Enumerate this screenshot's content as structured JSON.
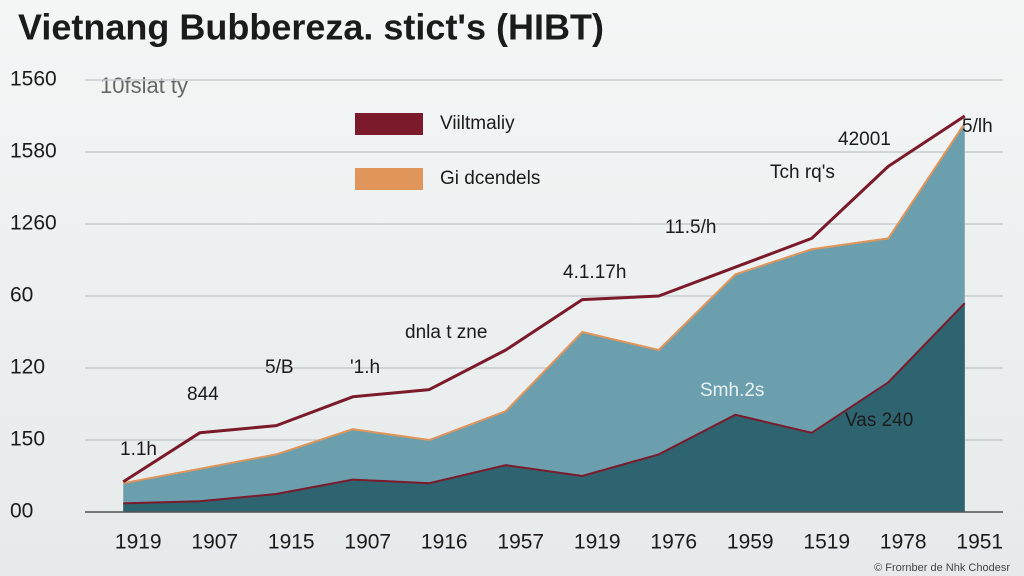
{
  "chart_data": {
    "type": "area",
    "title": "Vietnang Bubbereza. stict's (HIBT)",
    "subtitle": "10fslat ty",
    "footnote": "© Frornber de Nhk Chodesr",
    "categories": [
      "1919",
      "1907",
      "1915",
      "1907",
      "1916",
      "1957",
      "1919",
      "1976",
      "1959",
      "1519",
      "1978",
      "1951"
    ],
    "series": [
      {
        "name": "Viiltmaliy",
        "color": "#7b1a2a",
        "style": "line",
        "values": [
          0.42,
          1.1,
          1.2,
          1.6,
          1.7,
          2.25,
          2.95,
          3.0,
          3.4,
          3.8,
          4.8,
          5.5
        ]
      },
      {
        "name": "Gi dcendels",
        "color": "#e0955a",
        "fill": "#6b9fae",
        "style": "area",
        "values": [
          0.4,
          0.6,
          0.8,
          1.15,
          1.0,
          1.4,
          2.5,
          2.25,
          3.3,
          3.65,
          3.8,
          5.4
        ]
      },
      {
        "color": "#7b1a2a",
        "fill": "#2e6470",
        "style": "area",
        "values": [
          0.12,
          0.15,
          0.25,
          0.45,
          0.4,
          0.65,
          0.5,
          0.8,
          1.35,
          1.1,
          1.8,
          2.9
        ]
      }
    ],
    "annotations": [
      "1.1h",
      "844",
      "5/B",
      "'1.h",
      "dnla t zne",
      "4.1.17h",
      "11.5/h",
      "Tch rq's",
      "42001",
      "5/lh",
      "Smh.2s",
      "Vas 240"
    ],
    "ylim": [
      0,
      6
    ],
    "yticks": [
      {
        "value": 0,
        "label": "00"
      },
      {
        "value": 1,
        "label": "150"
      },
      {
        "value": 2,
        "label": "120"
      },
      {
        "value": 3,
        "label": "60"
      },
      {
        "value": 4,
        "label": "1260"
      },
      {
        "value": 5,
        "label": "1580"
      },
      {
        "value": 6,
        "label": "1560"
      }
    ],
    "grid": true
  }
}
